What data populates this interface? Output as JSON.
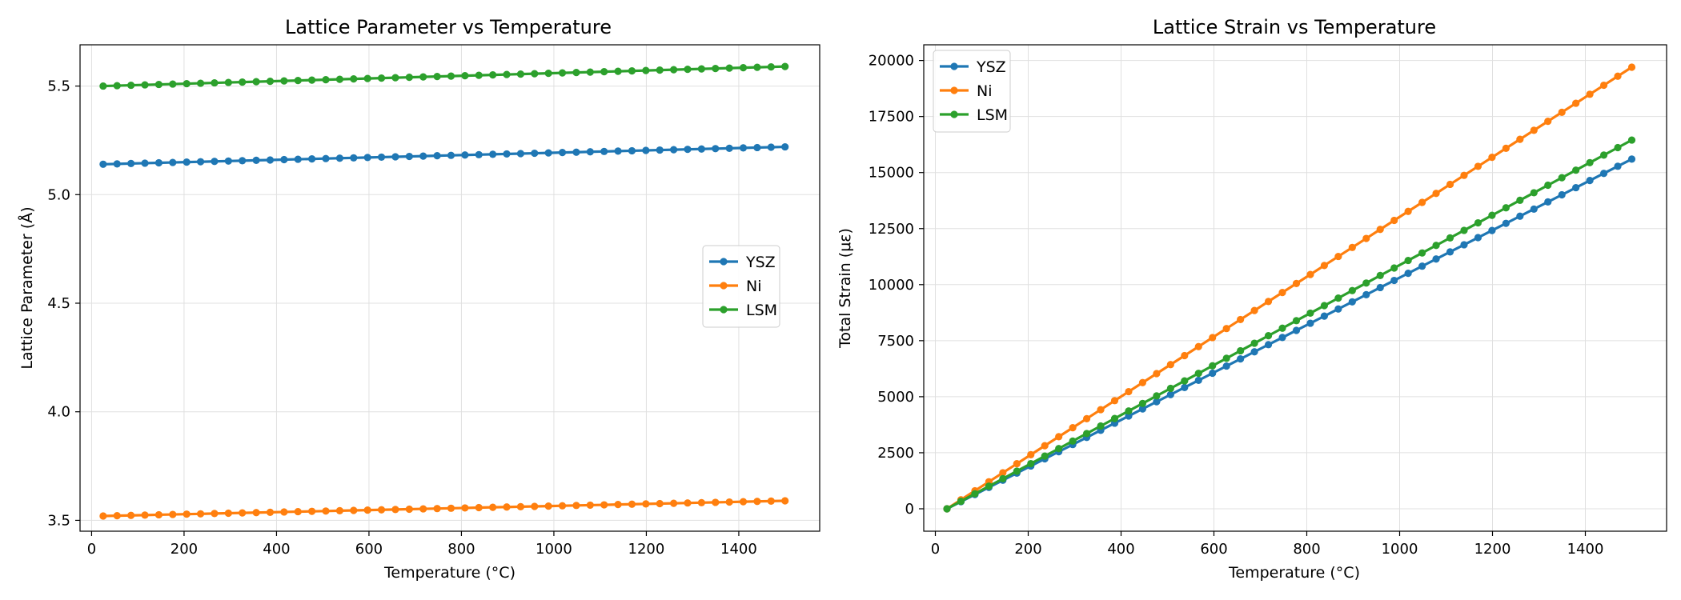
{
  "colors": {
    "YSZ": "#1f77b4",
    "Ni": "#ff7f0e",
    "LSM": "#2ca02c"
  },
  "chart_data": [
    {
      "type": "line",
      "title": "Lattice Parameter vs Temperature",
      "xlabel": "Temperature (°C)",
      "ylabel": "Lattice Parameter (Å)",
      "xlim": [
        -25,
        1575
      ],
      "ylim": [
        3.45,
        5.69
      ],
      "xticks": [
        0,
        200,
        400,
        600,
        800,
        1000,
        1200,
        1400
      ],
      "yticks": [
        3.5,
        4.0,
        4.5,
        5.0,
        5.5
      ],
      "ytick_labels": [
        "3.5",
        "4.0",
        "4.5",
        "5.0",
        "5.5"
      ],
      "grid": true,
      "legend_position": "center-right",
      "x_range": {
        "start": 25,
        "end": 1500,
        "count": 50
      },
      "series": [
        {
          "name": "YSZ",
          "color": "#1f77b4",
          "start": 5.14,
          "end": 5.22
        },
        {
          "name": "Ni",
          "color": "#ff7f0e",
          "start": 3.52,
          "end": 3.59
        },
        {
          "name": "LSM",
          "color": "#2ca02c",
          "start": 5.5,
          "end": 5.59
        }
      ]
    },
    {
      "type": "line",
      "title": "Lattice Strain vs Temperature",
      "xlabel": "Temperature (°C)",
      "ylabel": "Total Strain (με)",
      "xlim": [
        -25,
        1575
      ],
      "ylim": [
        -1000,
        20700
      ],
      "xticks": [
        0,
        200,
        400,
        600,
        800,
        1000,
        1200,
        1400
      ],
      "yticks": [
        0,
        2500,
        5000,
        7500,
        10000,
        12500,
        15000,
        17500,
        20000
      ],
      "ytick_labels": [
        "0",
        "2500",
        "5000",
        "7500",
        "10000",
        "12500",
        "15000",
        "17500",
        "20000"
      ],
      "grid": true,
      "legend_position": "upper-left",
      "x_range": {
        "start": 25,
        "end": 1500,
        "count": 50
      },
      "series": [
        {
          "name": "YSZ",
          "color": "#1f77b4",
          "start": 0,
          "end": 15600
        },
        {
          "name": "Ni",
          "color": "#ff7f0e",
          "start": 0,
          "end": 19700
        },
        {
          "name": "LSM",
          "color": "#2ca02c",
          "start": 0,
          "end": 16450
        }
      ]
    }
  ]
}
